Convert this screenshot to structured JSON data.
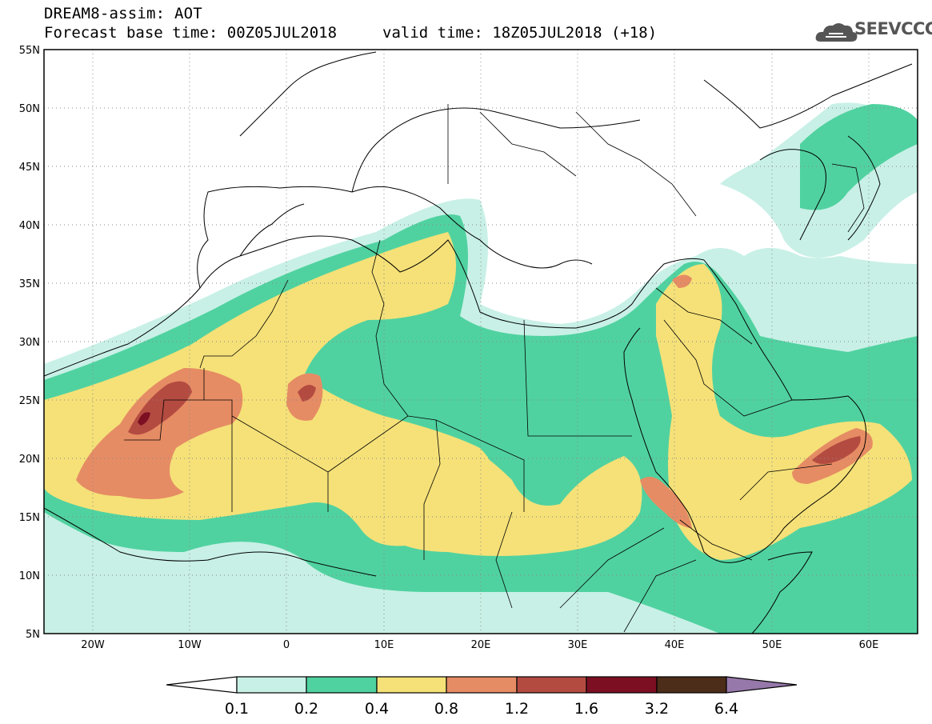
{
  "header": {
    "title": "DREAM8-assim: AOT",
    "base_time": "Forecast base time: 00Z05JUL2018",
    "valid_time": "valid time: 18Z05JUL2018 (+18)",
    "logo_text": "SEEVCCC",
    "logo_icon": "cloud-icon"
  },
  "map": {
    "extent": {
      "lon": [
        -25,
        65
      ],
      "lat": [
        5,
        55
      ]
    },
    "lat_ticks": [
      "5N",
      "10N",
      "15N",
      "20N",
      "25N",
      "30N",
      "35N",
      "40N",
      "45N",
      "50N",
      "55N"
    ],
    "lon_ticks": [
      "20W",
      "10W",
      "0",
      "10E",
      "20E",
      "30E",
      "40E",
      "50E",
      "60E"
    ],
    "grid": "dotted"
  },
  "colorbar": {
    "levels": [
      "0.1",
      "0.2",
      "0.4",
      "0.8",
      "1.2",
      "1.6",
      "3.2",
      "6.4"
    ],
    "colors": [
      "#ffffff",
      "#c8f0e6",
      "#50d2a0",
      "#f5e178",
      "#e68c64",
      "#b44b41",
      "#7d0f23",
      "#4b2d19",
      "#9678aa"
    ]
  }
}
